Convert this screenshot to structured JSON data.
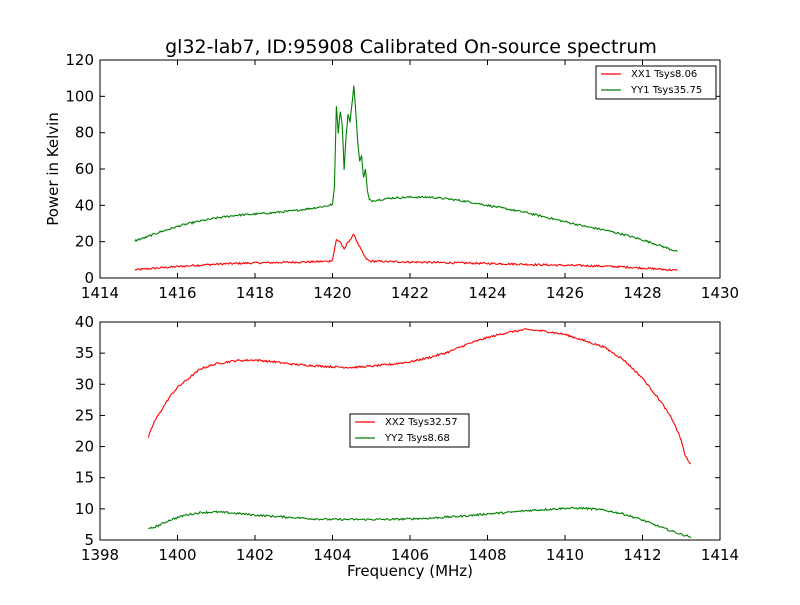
{
  "chart_data": [
    {
      "type": "line",
      "title": "gl32-lab7, ID:95908 Calibrated On-source spectrum",
      "xlabel": "",
      "ylabel": "Power in Kelvin",
      "xlim": [
        1414,
        1430
      ],
      "ylim": [
        0,
        120
      ],
      "xticks": [
        "1414",
        "1416",
        "1418",
        "1420",
        "1422",
        "1424",
        "1426",
        "1428",
        "1430"
      ],
      "yticks": [
        "0",
        "20",
        "40",
        "60",
        "80",
        "100",
        "120"
      ],
      "legend": "top-right",
      "grid": false,
      "series": [
        {
          "name": "XX1 Tsys8.06",
          "color": "#ff0000",
          "points": [
            [
              1414.9,
              4.5
            ],
            [
              1415.5,
              5.5
            ],
            [
              1416.0,
              6.3
            ],
            [
              1416.5,
              7.0
            ],
            [
              1417.0,
              7.6
            ],
            [
              1417.5,
              8.0
            ],
            [
              1418.0,
              8.3
            ],
            [
              1418.5,
              8.5
            ],
            [
              1419.0,
              8.7
            ],
            [
              1419.5,
              8.9
            ],
            [
              1419.9,
              9.2
            ],
            [
              1420.0,
              10.0
            ],
            [
              1420.1,
              21.0
            ],
            [
              1420.2,
              20.0
            ],
            [
              1420.3,
              15.5
            ],
            [
              1420.4,
              20.0
            ],
            [
              1420.5,
              22.0
            ],
            [
              1420.55,
              24.5
            ],
            [
              1420.65,
              19.0
            ],
            [
              1420.75,
              15.0
            ],
            [
              1420.85,
              11.0
            ],
            [
              1420.95,
              9.3
            ],
            [
              1421.5,
              9.0
            ],
            [
              1422.0,
              8.8
            ],
            [
              1422.5,
              8.6
            ],
            [
              1423.0,
              8.4
            ],
            [
              1423.5,
              8.2
            ],
            [
              1424.0,
              8.0
            ],
            [
              1424.5,
              7.8
            ],
            [
              1425.0,
              7.5
            ],
            [
              1425.5,
              7.2
            ],
            [
              1426.0,
              7.0
            ],
            [
              1426.5,
              6.8
            ],
            [
              1427.0,
              6.5
            ],
            [
              1427.5,
              6.1
            ],
            [
              1428.0,
              5.5
            ],
            [
              1428.5,
              4.8
            ],
            [
              1428.9,
              4.2
            ]
          ]
        },
        {
          "name": "YY1 Tsys35.75",
          "color": "#008000",
          "points": [
            [
              1414.9,
              20.5
            ],
            [
              1415.2,
              22.5
            ],
            [
              1415.5,
              25.0
            ],
            [
              1415.8,
              27.0
            ],
            [
              1416.1,
              29.0
            ],
            [
              1416.5,
              31.0
            ],
            [
              1417.0,
              33.0
            ],
            [
              1417.5,
              34.5
            ],
            [
              1418.0,
              35.2
            ],
            [
              1418.5,
              36.0
            ],
            [
              1419.0,
              37.0
            ],
            [
              1419.5,
              38.5
            ],
            [
              1419.8,
              39.5
            ],
            [
              1420.0,
              40.5
            ],
            [
              1420.05,
              50.0
            ],
            [
              1420.1,
              95.0
            ],
            [
              1420.15,
              80.0
            ],
            [
              1420.2,
              92.0
            ],
            [
              1420.25,
              85.0
            ],
            [
              1420.3,
              60.0
            ],
            [
              1420.35,
              78.0
            ],
            [
              1420.4,
              90.0
            ],
            [
              1420.45,
              86.0
            ],
            [
              1420.5,
              95.0
            ],
            [
              1420.55,
              106.0
            ],
            [
              1420.6,
              92.0
            ],
            [
              1420.65,
              75.0
            ],
            [
              1420.7,
              64.0
            ],
            [
              1420.75,
              68.0
            ],
            [
              1420.8,
              55.0
            ],
            [
              1420.85,
              60.0
            ],
            [
              1420.9,
              48.0
            ],
            [
              1420.95,
              43.0
            ],
            [
              1421.0,
              42.5
            ],
            [
              1421.5,
              44.0
            ],
            [
              1422.0,
              44.5
            ],
            [
              1422.5,
              44.5
            ],
            [
              1423.0,
              43.5
            ],
            [
              1423.5,
              42.0
            ],
            [
              1424.0,
              40.0
            ],
            [
              1424.5,
              38.0
            ],
            [
              1425.0,
              36.0
            ],
            [
              1425.5,
              33.5
            ],
            [
              1426.0,
              31.0
            ],
            [
              1426.5,
              28.5
            ],
            [
              1427.0,
              26.5
            ],
            [
              1427.5,
              24.0
            ],
            [
              1428.0,
              21.0
            ],
            [
              1428.5,
              17.5
            ],
            [
              1428.9,
              14.5
            ]
          ]
        }
      ]
    },
    {
      "type": "line",
      "title": "",
      "xlabel": "Frequency (MHz)",
      "ylabel": "",
      "xlim": [
        1398,
        1414
      ],
      "ylim": [
        5,
        40
      ],
      "xticks": [
        "1398",
        "1400",
        "1402",
        "1404",
        "1406",
        "1408",
        "1410",
        "1412",
        "1414"
      ],
      "yticks": [
        "5",
        "10",
        "15",
        "20",
        "25",
        "30",
        "35",
        "40"
      ],
      "legend": "center",
      "grid": false,
      "series": [
        {
          "name": "XX2 Tsys32.57",
          "color": "#ff0000",
          "points": [
            [
              1399.25,
              21.5
            ],
            [
              1399.4,
              24.0
            ],
            [
              1399.6,
              26.0
            ],
            [
              1399.8,
              28.0
            ],
            [
              1400.0,
              29.5
            ],
            [
              1400.3,
              31.0
            ],
            [
              1400.6,
              32.5
            ],
            [
              1401.0,
              33.3
            ],
            [
              1401.5,
              33.8
            ],
            [
              1402.0,
              33.9
            ],
            [
              1402.5,
              33.6
            ],
            [
              1403.0,
              33.2
            ],
            [
              1403.5,
              33.0
            ],
            [
              1404.0,
              32.8
            ],
            [
              1404.5,
              32.7
            ],
            [
              1405.0,
              32.9
            ],
            [
              1405.5,
              33.2
            ],
            [
              1406.0,
              33.6
            ],
            [
              1406.5,
              34.3
            ],
            [
              1407.0,
              35.2
            ],
            [
              1407.5,
              36.5
            ],
            [
              1408.0,
              37.5
            ],
            [
              1408.5,
              38.3
            ],
            [
              1409.0,
              38.8
            ],
            [
              1409.5,
              38.5
            ],
            [
              1410.0,
              38.0
            ],
            [
              1410.5,
              37.0
            ],
            [
              1411.0,
              36.0
            ],
            [
              1411.5,
              34.0
            ],
            [
              1412.0,
              31.0
            ],
            [
              1412.5,
              27.0
            ],
            [
              1412.8,
              24.0
            ],
            [
              1413.0,
              21.0
            ],
            [
              1413.1,
              18.5
            ],
            [
              1413.25,
              17.2
            ]
          ]
        },
        {
          "name": "YY2 Tsys8.68",
          "color": "#008000",
          "points": [
            [
              1399.25,
              6.7
            ],
            [
              1399.5,
              7.3
            ],
            [
              1399.8,
              8.2
            ],
            [
              1400.2,
              9.0
            ],
            [
              1400.6,
              9.4
            ],
            [
              1401.0,
              9.5
            ],
            [
              1401.5,
              9.3
            ],
            [
              1402.0,
              9.0
            ],
            [
              1402.5,
              8.8
            ],
            [
              1403.0,
              8.6
            ],
            [
              1403.5,
              8.4
            ],
            [
              1404.0,
              8.3
            ],
            [
              1404.5,
              8.3
            ],
            [
              1405.0,
              8.3
            ],
            [
              1405.5,
              8.3
            ],
            [
              1406.0,
              8.4
            ],
            [
              1406.5,
              8.5
            ],
            [
              1407.0,
              8.7
            ],
            [
              1407.5,
              8.9
            ],
            [
              1408.0,
              9.2
            ],
            [
              1408.5,
              9.4
            ],
            [
              1409.0,
              9.7
            ],
            [
              1409.5,
              9.9
            ],
            [
              1410.0,
              10.1
            ],
            [
              1410.5,
              10.1
            ],
            [
              1411.0,
              9.8
            ],
            [
              1411.5,
              9.2
            ],
            [
              1412.0,
              8.2
            ],
            [
              1412.5,
              7.0
            ],
            [
              1413.0,
              5.9
            ],
            [
              1413.25,
              5.5
            ]
          ]
        }
      ]
    }
  ]
}
